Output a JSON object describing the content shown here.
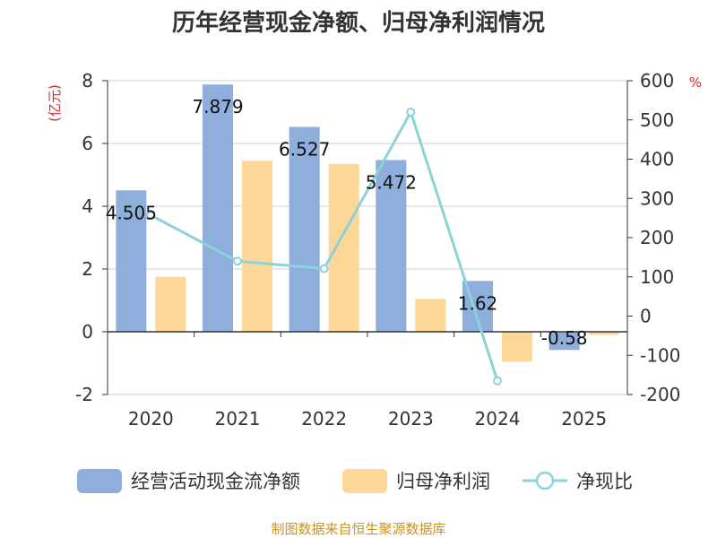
{
  "chart_data": {
    "type": "bar",
    "title": "历年经营现金净额、归母净利润情况",
    "categories": [
      "2020",
      "2021",
      "2022",
      "2023",
      "2024",
      "2025"
    ],
    "left_axis": {
      "unit": "(亿元)",
      "ylim": [
        -2,
        8
      ],
      "ticks": [
        -2,
        0,
        2,
        4,
        6,
        8
      ]
    },
    "right_axis": {
      "unit": "%",
      "ylim": [
        -200,
        600
      ],
      "ticks": [
        -200,
        -100,
        0,
        100,
        200,
        300,
        400,
        500,
        600
      ]
    },
    "series": [
      {
        "name": "经营活动现金流净额",
        "kind": "bar",
        "axis": "left",
        "color": "#8eaedb",
        "values": [
          4.505,
          7.879,
          6.527,
          5.472,
          1.62,
          -0.58
        ],
        "labels": [
          "4.505",
          "7.879",
          "6.527",
          "5.472",
          "1.62",
          "-0.58"
        ]
      },
      {
        "name": "归母净利润",
        "kind": "bar",
        "axis": "left",
        "color": "#fdd797",
        "values": [
          1.75,
          5.45,
          5.35,
          1.05,
          -0.95,
          -0.1
        ]
      },
      {
        "name": "净现比",
        "kind": "line",
        "axis": "right",
        "color": "#8cd3d8",
        "values": [
          257,
          140,
          121,
          520,
          -165,
          null
        ]
      }
    ],
    "grid": true,
    "legend_position": "bottom"
  },
  "source": "制图数据来自恒生聚源数据库"
}
